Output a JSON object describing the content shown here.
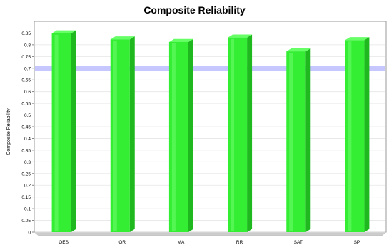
{
  "chart_data": {
    "type": "bar",
    "title": "Composite Reliability",
    "xlabel": "",
    "ylabel": "Composite Reliability",
    "categories": [
      "OES",
      "OR",
      "MA",
      "RR",
      "SAT",
      "SP"
    ],
    "values": [
      0.849,
      0.823,
      0.812,
      0.831,
      0.772,
      0.82
    ],
    "ylim": [
      0,
      0.9
    ],
    "yticks": [
      0,
      0.05,
      0.1,
      0.15,
      0.2,
      0.25,
      0.3,
      0.35,
      0.4,
      0.45,
      0.5,
      0.55,
      0.6,
      0.65,
      0.7,
      0.75,
      0.8,
      0.85
    ],
    "ytick_labels": [
      "0",
      "0.05",
      "0.1",
      "0.15",
      "0.2",
      "0.25",
      "0.3",
      "0.35",
      "0.4",
      "0.45",
      "0.5",
      "0.55",
      "0.6",
      "0.65",
      "0.7",
      "0.75",
      "0.8",
      "0.85"
    ],
    "threshold": 0.7,
    "grid": true,
    "legend": "none",
    "colors": {
      "bar_front": "#33ee33",
      "bar_side": "#1fb81f",
      "bar_top": "#66ff66",
      "threshold": "#9999ff",
      "plot_bg": "#ffffff",
      "plot_border": "#999999",
      "grid": "#e6e6e6",
      "floor": "#cccccc"
    }
  }
}
